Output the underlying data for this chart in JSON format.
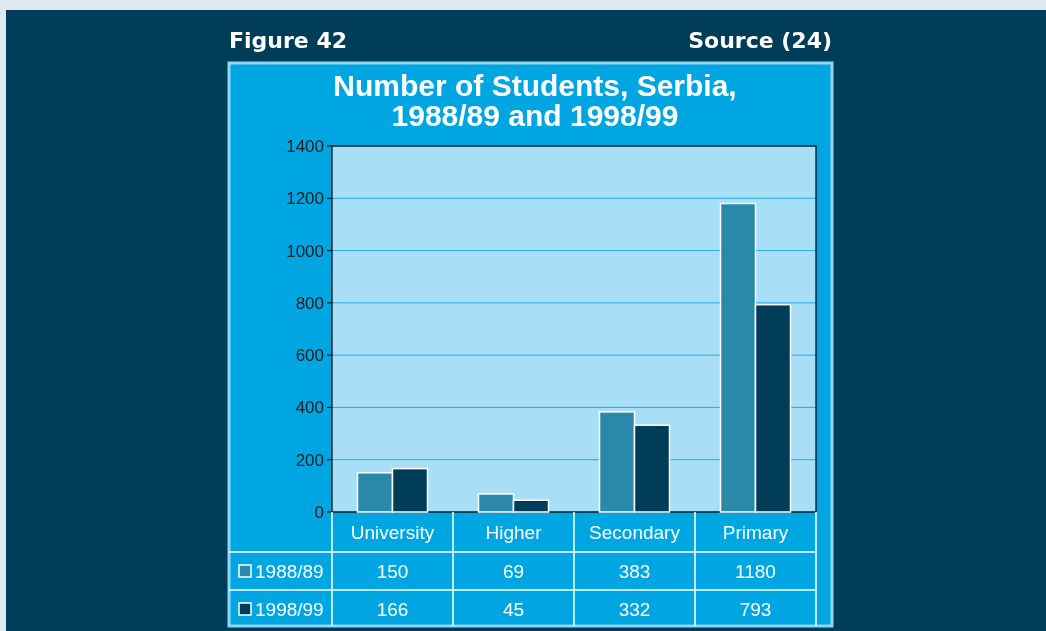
{
  "chart_data": {
    "type": "bar",
    "title": "Number of Students, Serbia, 1988/89 and 1998/99",
    "annotations": [
      "Figure 42",
      "Source (24)"
    ],
    "categories": [
      "University",
      "Higher",
      "Secondary",
      "Primary"
    ],
    "series": [
      {
        "name": "1988/89",
        "color": "#2a89a8",
        "values": [
          150,
          69,
          383,
          1180
        ]
      },
      {
        "name": "1998/99",
        "color": "#003d58",
        "values": [
          166,
          45,
          332,
          793
        ]
      }
    ],
    "ylim": [
      0,
      1400
    ],
    "yticks": [
      0,
      200,
      400,
      600,
      800,
      1000,
      1200,
      1400
    ],
    "grid": "y",
    "legend": "bottom left",
    "data_labels": true
  }
}
